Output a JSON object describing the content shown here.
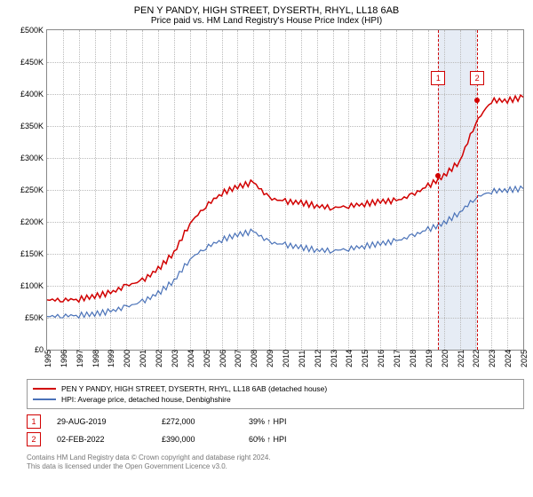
{
  "title": "PEN Y PANDY, HIGH STREET, DYSERTH, RHYL, LL18 6AB",
  "subtitle": "Price paid vs. HM Land Registry's House Price Index (HPI)",
  "chart": {
    "type": "line",
    "ylim": [
      0,
      500000
    ],
    "ytick_step": 50000,
    "ytick_labels": [
      "£0",
      "£50K",
      "£100K",
      "£150K",
      "£200K",
      "£250K",
      "£300K",
      "£350K",
      "£400K",
      "£450K",
      "£500K"
    ],
    "xyears": [
      1995,
      1996,
      1997,
      1998,
      1999,
      2000,
      2001,
      2002,
      2003,
      2004,
      2005,
      2006,
      2007,
      2008,
      2009,
      2010,
      2011,
      2012,
      2013,
      2014,
      2015,
      2016,
      2017,
      2018,
      2019,
      2020,
      2021,
      2022,
      2023,
      2024,
      2025
    ],
    "grid_color": "#bbbbbb",
    "border_color": "#888888",
    "background_color": "#ffffff",
    "band_color": "#e6ecf5",
    "series": [
      {
        "name": "property",
        "color": "#d10000",
        "width": 1.5,
        "y": [
          78,
          78,
          79,
          84,
          89,
          100,
          108,
          126,
          152,
          198,
          225,
          245,
          255,
          262,
          237,
          232,
          230,
          225,
          222,
          225,
          228,
          232,
          233,
          242,
          256,
          272,
          295,
          355,
          390,
          390,
          395
        ]
      },
      {
        "name": "hpi",
        "color": "#4a72b8",
        "width": 1.2,
        "y": [
          52,
          53,
          54,
          56,
          60,
          67,
          75,
          88,
          108,
          142,
          160,
          172,
          180,
          185,
          168,
          164,
          160,
          156,
          155,
          158,
          162,
          166,
          170,
          178,
          188,
          198,
          215,
          238,
          248,
          250,
          252
        ]
      }
    ],
    "markers": [
      {
        "n": "1",
        "year": 2019.65,
        "y": 272,
        "color": "#d10000"
      },
      {
        "n": "2",
        "year": 2022.1,
        "y": 390,
        "color": "#d10000"
      }
    ],
    "label_fontsize": 9
  },
  "legend": {
    "items": [
      {
        "color": "#d10000",
        "text": "PEN Y PANDY, HIGH STREET, DYSERTH, RHYL, LL18 6AB (detached house)"
      },
      {
        "color": "#4a72b8",
        "text": "HPI: Average price, detached house, Denbighshire"
      }
    ]
  },
  "sales": [
    {
      "n": "1",
      "color": "#d10000",
      "date": "29-AUG-2019",
      "price": "£272,000",
      "delta": "39% ↑ HPI"
    },
    {
      "n": "2",
      "color": "#d10000",
      "date": "02-FEB-2022",
      "price": "£390,000",
      "delta": "60% ↑ HPI"
    }
  ],
  "footer1": "Contains HM Land Registry data © Crown copyright and database right 2024.",
  "footer2": "This data is licensed under the Open Government Licence v3.0."
}
